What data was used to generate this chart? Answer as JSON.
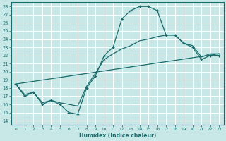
{
  "xlabel": "Humidex (Indice chaleur)",
  "background_color": "#c8e8e8",
  "grid_color": "#ffffff",
  "line_color": "#1a6b6b",
  "xlim": [
    -0.5,
    23.5
  ],
  "ylim": [
    13.5,
    28.5
  ],
  "yticks": [
    14,
    15,
    16,
    17,
    18,
    19,
    20,
    21,
    22,
    23,
    24,
    25,
    26,
    27,
    28
  ],
  "xticks": [
    0,
    1,
    2,
    3,
    4,
    5,
    6,
    7,
    8,
    9,
    10,
    11,
    12,
    13,
    14,
    15,
    16,
    17,
    18,
    19,
    20,
    21,
    22,
    23
  ],
  "xtick_labels": [
    "0",
    "1",
    "2",
    "3",
    "4",
    "5",
    "6",
    "7",
    "8",
    "9",
    "10",
    "11",
    "12",
    "13",
    "14",
    "15",
    "16",
    "17",
    "18",
    "19",
    "20",
    "21",
    "22",
    "23"
  ],
  "line1_x": [
    0,
    1,
    2,
    3,
    4,
    5,
    6,
    7,
    8,
    9,
    10,
    11,
    12,
    13,
    14,
    15,
    16,
    17,
    18,
    19,
    20,
    21,
    22,
    23
  ],
  "line1_y": [
    18.5,
    17.0,
    17.5,
    16.0,
    16.5,
    16.0,
    15.0,
    14.8,
    18.0,
    19.5,
    22.0,
    23.0,
    26.5,
    27.5,
    28.0,
    28.0,
    27.5,
    24.5,
    24.5,
    23.5,
    23.0,
    21.5,
    22.0,
    22.0
  ],
  "line2_x": [
    0,
    1,
    2,
    3,
    4,
    5,
    6,
    7,
    8,
    9,
    10,
    11,
    12,
    13,
    14,
    15,
    16,
    17,
    18,
    19,
    20,
    21,
    22,
    23
  ],
  "line2_y": [
    18.5,
    17.2,
    17.5,
    16.2,
    16.5,
    16.2,
    16.0,
    15.8,
    18.2,
    19.8,
    21.5,
    22.2,
    22.8,
    23.2,
    23.8,
    24.0,
    24.3,
    24.5,
    24.5,
    23.5,
    23.2,
    21.8,
    22.2,
    22.2
  ],
  "line3_x": [
    0,
    23
  ],
  "line3_y": [
    18.5,
    22.2
  ]
}
